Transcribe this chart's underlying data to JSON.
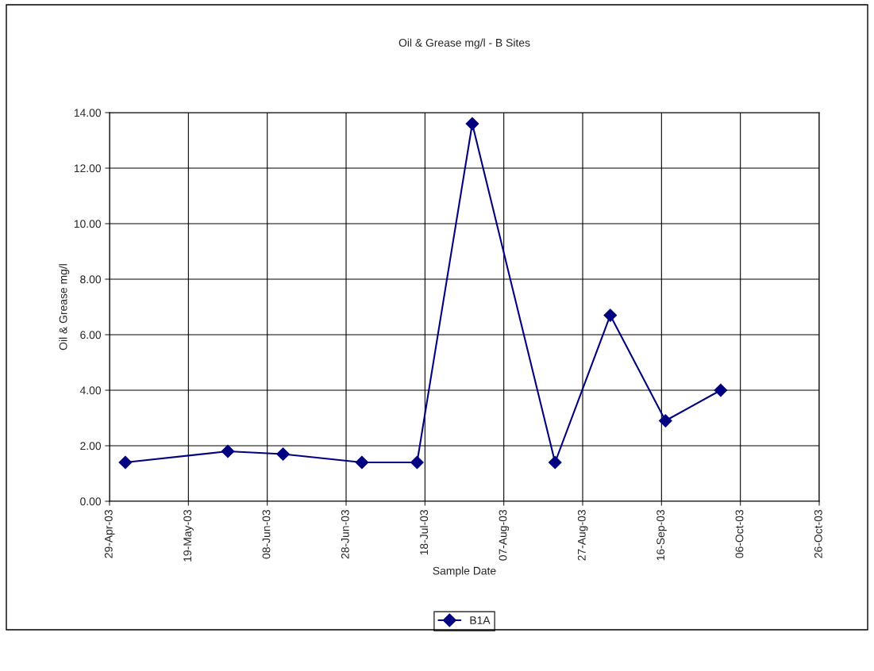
{
  "chart_data": {
    "type": "line",
    "title": "Oil & Grease mg/l - B Sites",
    "xlabel": "Sample Date",
    "ylabel": "Oil & Grease mg/l",
    "x": [
      "2003-05-03",
      "2003-05-29",
      "2003-06-12",
      "2003-07-02",
      "2003-07-16",
      "2003-07-30",
      "2003-08-20",
      "2003-09-03",
      "2003-09-17",
      "2003-10-01"
    ],
    "series": [
      {
        "name": "B1A",
        "color": "#000080",
        "values": [
          1.4,
          1.8,
          1.7,
          1.4,
          1.4,
          13.6,
          1.4,
          6.7,
          2.9,
          4.0
        ]
      }
    ],
    "xlim": [
      "2003-04-29",
      "2003-10-26"
    ],
    "xticks": [
      {
        "value": "2003-04-29",
        "label": "29-Apr-03"
      },
      {
        "value": "2003-05-19",
        "label": "19-May-03"
      },
      {
        "value": "2003-06-08",
        "label": "08-Jun-03"
      },
      {
        "value": "2003-06-28",
        "label": "28-Jun-03"
      },
      {
        "value": "2003-07-18",
        "label": "18-Jul-03"
      },
      {
        "value": "2003-08-07",
        "label": "07-Aug-03"
      },
      {
        "value": "2003-08-27",
        "label": "27-Aug-03"
      },
      {
        "value": "2003-09-16",
        "label": "16-Sep-03"
      },
      {
        "value": "2003-10-06",
        "label": "06-Oct-03"
      },
      {
        "value": "2003-10-26",
        "label": "26-Oct-03"
      }
    ],
    "ylim": [
      0,
      14
    ],
    "yticks": [
      {
        "value": 0,
        "label": "0.00"
      },
      {
        "value": 2,
        "label": "2.00"
      },
      {
        "value": 4,
        "label": "4.00"
      },
      {
        "value": 6,
        "label": "6.00"
      },
      {
        "value": 8,
        "label": "8.00"
      },
      {
        "value": 10,
        "label": "10.00"
      },
      {
        "value": 12,
        "label": "12.00"
      },
      {
        "value": 14,
        "label": "14.00"
      }
    ],
    "grid": true,
    "legend": "bottom",
    "marker": "diamond",
    "line_style": "solid"
  }
}
